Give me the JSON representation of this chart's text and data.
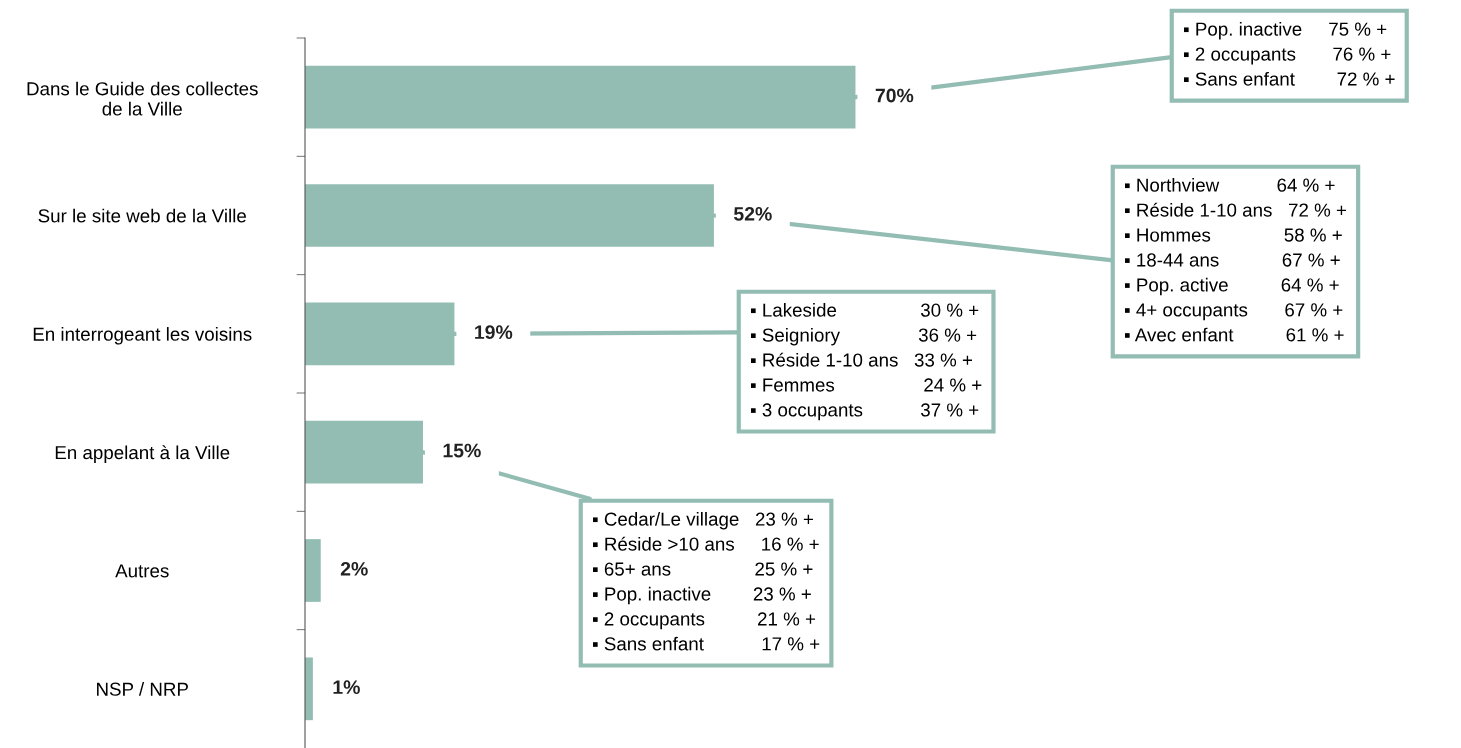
{
  "chart_data": {
    "type": "bar",
    "orientation": "horizontal",
    "categories": [
      "Dans le Guide des collectes\nde la Ville",
      "Sur le site web de la Ville",
      "En interrogeant les voisins",
      "En appelant à la Ville",
      "Autres",
      "NSP / NRP"
    ],
    "values": [
      70,
      52,
      19,
      15,
      2,
      1
    ],
    "value_labels": [
      "70%",
      "52%",
      "19%",
      "15%",
      "2%",
      "1%"
    ],
    "color": "#93bcb3",
    "grid": false,
    "legend": false,
    "annotations": [
      {
        "text": "▪ Pop. inactive     75 % +\n▪ 2 occupants       76 % +\n▪ Sans enfant        72 % +",
        "x": 70,
        "y": "Dans le Guide des collectes\nde la Ville"
      },
      {
        "text": "▪ Northview           64 % +\n▪ Réside 1-10 ans   72 % +\n▪ Hommes              58 % +\n▪ 18-44 ans            67 % +\n▪ Pop. active          64 % +\n▪ 4+ occupants       67 % +\n▪ Avec enfant          61 % +",
        "x": 52,
        "y": "Sur le site web de la Ville"
      },
      {
        "text": "▪ Lakeside                30 % +\n▪ Seigniory               36 % +\n▪ Réside 1-10 ans   33 % +\n▪ Femmes                 24 % +\n▪ 3 occupants           37 % +",
        "x": 19,
        "y": "En interrogeant les voisins"
      },
      {
        "text": "▪ Cedar/Le village   23 % +\n▪ Réside >10 ans     16 % +\n▪ 65+ ans                25 % +\n▪ Pop. inactive        23 % +\n▪ 2 occupants          21 % +\n▪ Sans enfant           17 % +",
        "x": 15,
        "y": "En appelant à la Ville"
      }
    ]
  }
}
